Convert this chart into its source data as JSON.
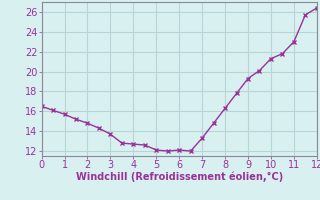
{
  "x": [
    0,
    0.5,
    1,
    1.5,
    2,
    2.5,
    3,
    3.5,
    4,
    4.5,
    5,
    5.5,
    6,
    6.5,
    7,
    7.5,
    8,
    8.5,
    9,
    9.5,
    10,
    10.5,
    11,
    11.5,
    12
  ],
  "y": [
    16.5,
    16.1,
    15.7,
    15.2,
    14.8,
    14.3,
    13.7,
    12.8,
    12.7,
    12.6,
    12.1,
    12.0,
    12.1,
    12.0,
    13.3,
    14.8,
    16.3,
    17.8,
    19.3,
    20.1,
    21.3,
    21.8,
    23.0,
    25.7,
    26.4
  ],
  "line_color": "#993399",
  "marker": "x",
  "marker_size": 3,
  "marker_linewidth": 1.0,
  "xlabel": "Windchill (Refroidissement éolien,°C)",
  "xlim": [
    0,
    12
  ],
  "ylim": [
    11.5,
    27
  ],
  "yticks": [
    12,
    14,
    16,
    18,
    20,
    22,
    24,
    26
  ],
  "xticks": [
    0,
    1,
    2,
    3,
    4,
    5,
    6,
    7,
    8,
    9,
    10,
    11,
    12
  ],
  "background_color": "#d8f0f0",
  "grid_color": "#b8d4d4",
  "label_fontsize": 7,
  "tick_fontsize": 7,
  "line_width": 1.0,
  "spine_color": "#888899"
}
